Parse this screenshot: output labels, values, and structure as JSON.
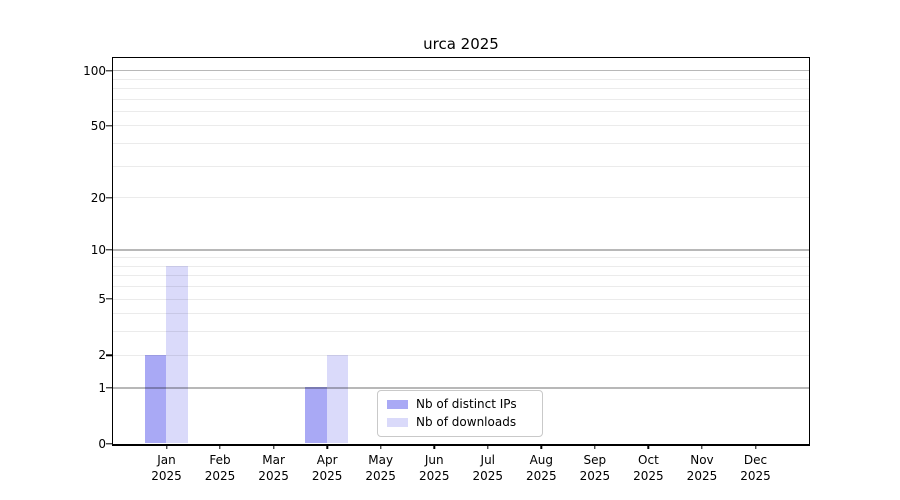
{
  "chart_data": {
    "type": "bar",
    "title": "urca 2025",
    "xlabel": "",
    "ylabel": "",
    "categories": [
      {
        "month": "Jan",
        "year": "2025"
      },
      {
        "month": "Feb",
        "year": "2025"
      },
      {
        "month": "Mar",
        "year": "2025"
      },
      {
        "month": "Apr",
        "year": "2025"
      },
      {
        "month": "May",
        "year": "2025"
      },
      {
        "month": "Jun",
        "year": "2025"
      },
      {
        "month": "Jul",
        "year": "2025"
      },
      {
        "month": "Aug",
        "year": "2025"
      },
      {
        "month": "Sep",
        "year": "2025"
      },
      {
        "month": "Oct",
        "year": "2025"
      },
      {
        "month": "Nov",
        "year": "2025"
      },
      {
        "month": "Dec",
        "year": "2025"
      }
    ],
    "series": [
      {
        "key": "distinct-ips",
        "name": "Nb of distinct IPs",
        "color": "#a9a9f5",
        "values": [
          2,
          0,
          0,
          1,
          0,
          0,
          0,
          0,
          0,
          0,
          0,
          0
        ]
      },
      {
        "key": "downloads",
        "name": "Nb of downloads",
        "color": "#dadafa",
        "values": [
          8,
          0,
          0,
          2,
          0,
          0,
          0,
          0,
          0,
          0,
          0,
          0
        ]
      }
    ],
    "y_axis": {
      "scale": "log1p",
      "tick_labels": [
        0,
        1,
        2,
        5,
        10,
        20,
        50,
        100
      ],
      "grid_major": [
        1,
        10,
        100
      ],
      "grid_minor": [
        2,
        3,
        4,
        5,
        6,
        7,
        8,
        9,
        20,
        30,
        40,
        50,
        60,
        70,
        80,
        90
      ],
      "ylim": [
        0,
        117
      ]
    },
    "legend_position": "bottom-center-inside",
    "grid": true
  }
}
